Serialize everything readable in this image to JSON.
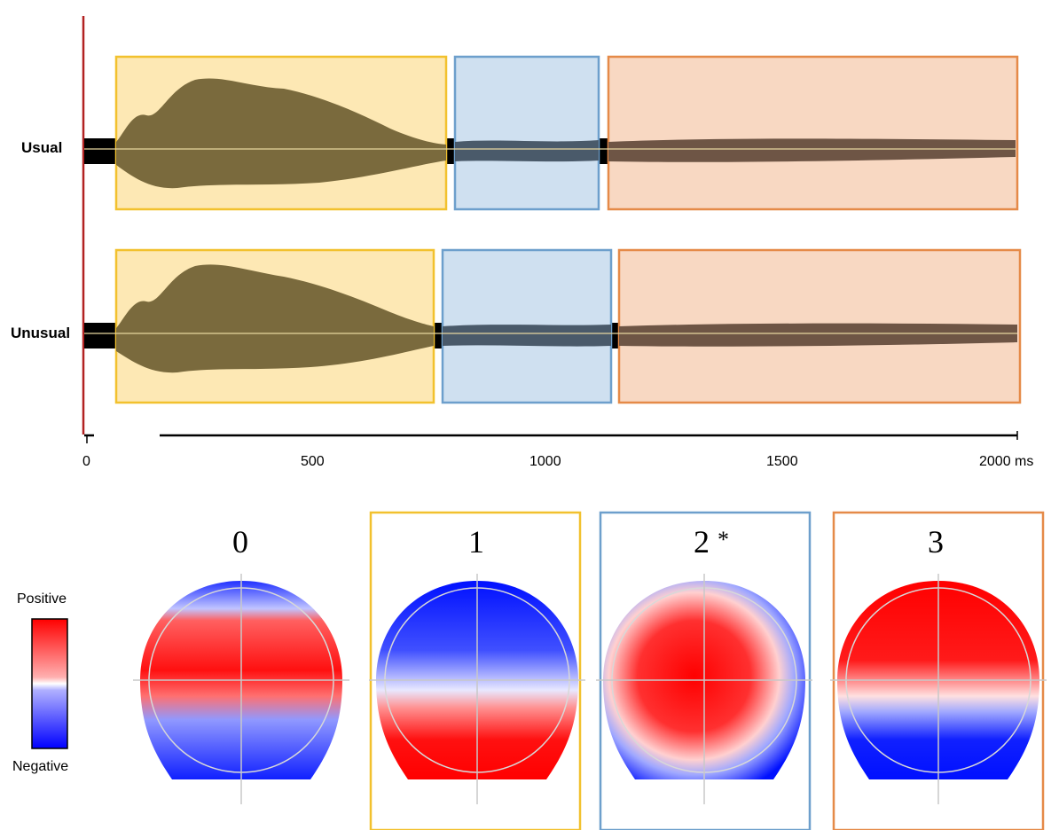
{
  "rows": [
    {
      "label": "Usual"
    },
    {
      "label": "Unusual"
    }
  ],
  "axis": {
    "ticks": [
      "0",
      "500",
      "1000",
      "1500",
      "2000 ms"
    ]
  },
  "topomaps": [
    {
      "label": "0",
      "marker": "",
      "frame": "none"
    },
    {
      "label": "1",
      "marker": "",
      "frame": "yellow"
    },
    {
      "label": "2",
      "marker": "*",
      "frame": "blue"
    },
    {
      "label": "3",
      "marker": "",
      "frame": "orange"
    }
  ],
  "colorbar": {
    "top_label": "Positive",
    "bottom_label": "Negative"
  },
  "colors": {
    "yellow_frame": "#f2c12e",
    "yellow_fill": "#fde8b4",
    "blue_frame": "#6d9fcc",
    "blue_fill": "#cfe0f0",
    "orange_frame": "#e58a48",
    "orange_fill": "#f8d8c2",
    "erp_trace": "#7a6a3d",
    "axis_red": "#b22222",
    "positive": "#ff0000",
    "negative": "#0000ff"
  }
}
